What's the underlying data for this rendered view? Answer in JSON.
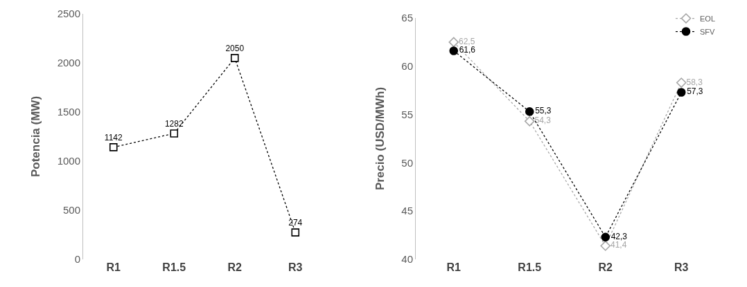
{
  "chart_data": [
    {
      "type": "line",
      "ylabel": "Potencia (MW)",
      "categories": [
        "R1",
        "R1.5",
        "R2",
        "R3"
      ],
      "ylim": [
        0,
        2500
      ],
      "yticks": [
        0,
        500,
        1000,
        1500,
        2000,
        2500
      ],
      "grid": false,
      "legend": false,
      "data_labels": true,
      "marker": "square",
      "line_style": "dotted",
      "series": [
        {
          "color": "#000000",
          "values": [
            1142,
            1282,
            2050,
            274
          ]
        }
      ]
    },
    {
      "type": "line",
      "ylabel": "Precio (USD/MWh)",
      "categories": [
        "R1",
        "R1.5",
        "R2",
        "R3"
      ],
      "ylim": [
        40,
        65
      ],
      "yticks": [
        40,
        45,
        50,
        55,
        60,
        65
      ],
      "grid": false,
      "legend": "top right",
      "line_style": "dotted",
      "series": [
        {
          "name": "EOL",
          "color": "#a6a6a6",
          "marker": "diamond",
          "values": [
            62.5,
            54.3,
            41.4,
            58.3
          ],
          "value_labels": [
            "62,5",
            "54,3",
            "41,4",
            "58,3"
          ]
        },
        {
          "name": "SFV",
          "color": "#000000",
          "marker": "circle",
          "values": [
            61.6,
            55.3,
            42.3,
            57.3
          ],
          "value_labels": [
            "61,6",
            "55,3",
            "42,3",
            "57,3"
          ]
        }
      ]
    }
  ]
}
